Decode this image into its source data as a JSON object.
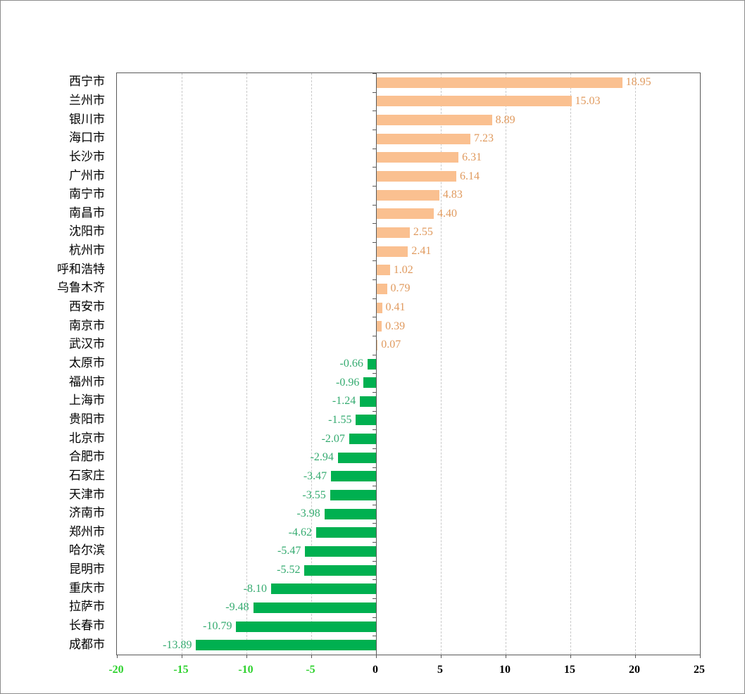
{
  "chart_data": {
    "type": "bar",
    "orientation": "horizontal",
    "title": "",
    "xlabel": "",
    "ylabel": "",
    "xlim": [
      -20,
      25
    ],
    "grid": true,
    "categories": [
      "西宁市",
      "兰州市",
      "银川市",
      "海口市",
      "长沙市",
      "广州市",
      "南宁市",
      "南昌市",
      "沈阳市",
      "杭州市",
      "呼和浩特",
      "乌鲁木齐",
      "西安市",
      "南京市",
      "武汉市",
      "太原市",
      "福州市",
      "上海市",
      "贵阳市",
      "北京市",
      "合肥市",
      "石家庄",
      "天津市",
      "济南市",
      "郑州市",
      "哈尔滨",
      "昆明市",
      "重庆市",
      "拉萨市",
      "长春市",
      "成都市"
    ],
    "values": [
      18.95,
      15.03,
      8.89,
      7.23,
      6.31,
      6.14,
      4.83,
      4.4,
      2.55,
      2.41,
      1.02,
      0.79,
      0.41,
      0.39,
      0.07,
      -0.66,
      -0.96,
      -1.24,
      -1.55,
      -2.07,
      -2.94,
      -3.47,
      -3.55,
      -3.98,
      -4.62,
      -5.47,
      -5.52,
      -8.1,
      -9.48,
      -10.79,
      -13.89
    ],
    "value_labels": [
      "18.95",
      "15.03",
      "8.89",
      "7.23",
      "6.31",
      "6.14",
      "4.83",
      "4.40",
      "2.55",
      "2.41",
      "1.02",
      "0.79",
      "0.41",
      "0.39",
      "0.07",
      "-0.66",
      "-0.96",
      "-1.24",
      "-1.55",
      "-2.07",
      "-2.94",
      "-3.47",
      "-3.55",
      "-3.98",
      "-4.62",
      "-5.47",
      "-5.52",
      "-8.10",
      "-9.48",
      "-10.79",
      "-13.89"
    ],
    "x_ticks": [
      {
        "value": -20,
        "label": "-20",
        "color": "#2ed22e"
      },
      {
        "value": -15,
        "label": "-15",
        "color": "#2ed22e"
      },
      {
        "value": -10,
        "label": "-10",
        "color": "#2ed22e"
      },
      {
        "value": -5,
        "label": "-5",
        "color": "#2ed22e"
      },
      {
        "value": 0,
        "label": "0",
        "color": "#000000"
      },
      {
        "value": 5,
        "label": "5",
        "color": "#000000"
      },
      {
        "value": 10,
        "label": "10",
        "color": "#000000"
      },
      {
        "value": 15,
        "label": "15",
        "color": "#000000"
      },
      {
        "value": 20,
        "label": "20",
        "color": "#000000"
      },
      {
        "value": 25,
        "label": "25",
        "color": "#000000"
      }
    ],
    "colors": {
      "positive_bar": "#FAC090",
      "negative_bar": "#00B050",
      "positive_value_label": "#E09A5E",
      "negative_value_label": "#35AB70",
      "gridline": "#C9C9C9",
      "axis_line": "#595959",
      "category_label": "#000000"
    },
    "legend": null
  }
}
